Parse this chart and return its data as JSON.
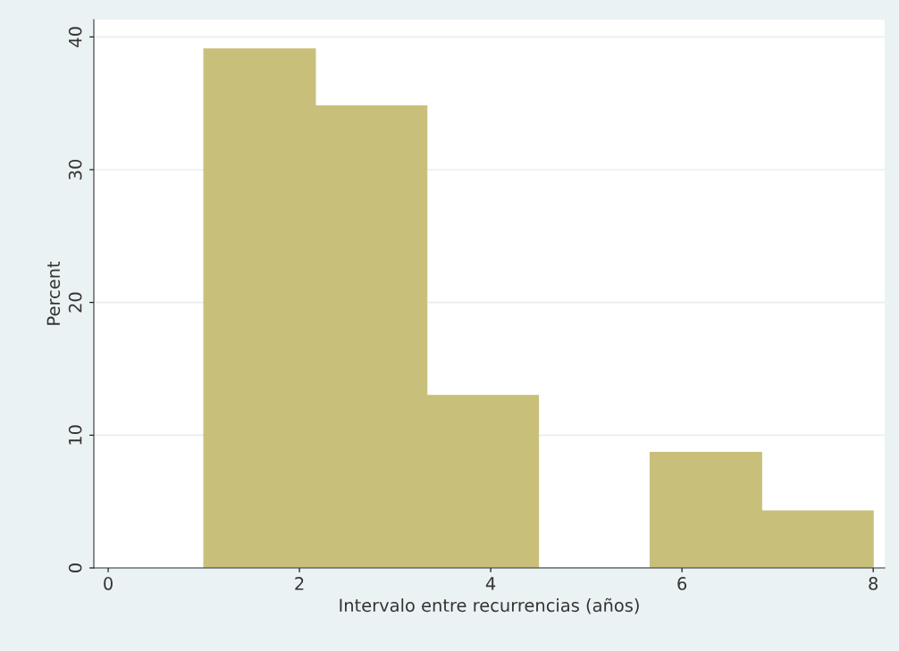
{
  "chart_data": {
    "type": "histogram",
    "xlabel": "Intervalo entre recurrencias (años)",
    "ylabel": "Percent",
    "bins": [
      1,
      2.167,
      3.333,
      4.5,
      5.667,
      6.833,
      8
    ],
    "values": [
      39.1,
      34.8,
      13.0,
      0,
      8.7,
      4.3
    ],
    "color": "#c8c07a",
    "xlim": [
      -0.15,
      8.12
    ],
    "ylim": [
      0,
      41.3
    ],
    "xticks": [
      0,
      2,
      4,
      6,
      8
    ],
    "yticks": [
      0,
      10,
      20,
      30,
      40
    ],
    "grid": "y",
    "legend": false
  }
}
